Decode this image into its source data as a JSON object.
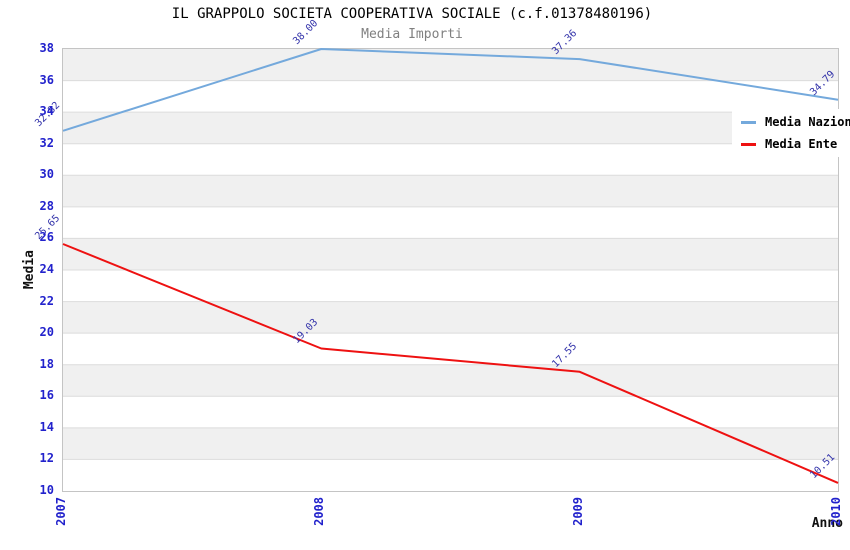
{
  "chart_data": {
    "type": "line",
    "title": "IL GRAPPOLO SOCIETA COOPERATIVA SOCIALE (c.f.01378480196)",
    "subtitle": "Media Importi",
    "xlabel": "Anno",
    "ylabel": "Media",
    "x": [
      "2007",
      "2008",
      "2009",
      "2010"
    ],
    "ylim": [
      10,
      38
    ],
    "ytick_step": 2,
    "grid": true,
    "legend_position": "top-right",
    "series": [
      {
        "name": "Media Nazionale",
        "color": "#74a9dc",
        "values": [
          32.82,
          38.0,
          37.36,
          34.79
        ],
        "labels": [
          "32.82",
          "38.00",
          "37.36",
          "34.79"
        ]
      },
      {
        "name": "Media Ente",
        "color": "#ee1111",
        "values": [
          25.65,
          19.03,
          17.55,
          10.51
        ],
        "labels": [
          "25.65",
          "19.03",
          "17.55",
          "10.51"
        ]
      }
    ],
    "colors": {
      "tick_label": "#2222cc",
      "value_label": "#3333aa",
      "plot_border": "#c4c4c4",
      "grid_line": "#dcdcdc",
      "band_gray": "#f0f0f0",
      "band_white": "#ffffff",
      "subtitle_gray": "#808080"
    }
  }
}
